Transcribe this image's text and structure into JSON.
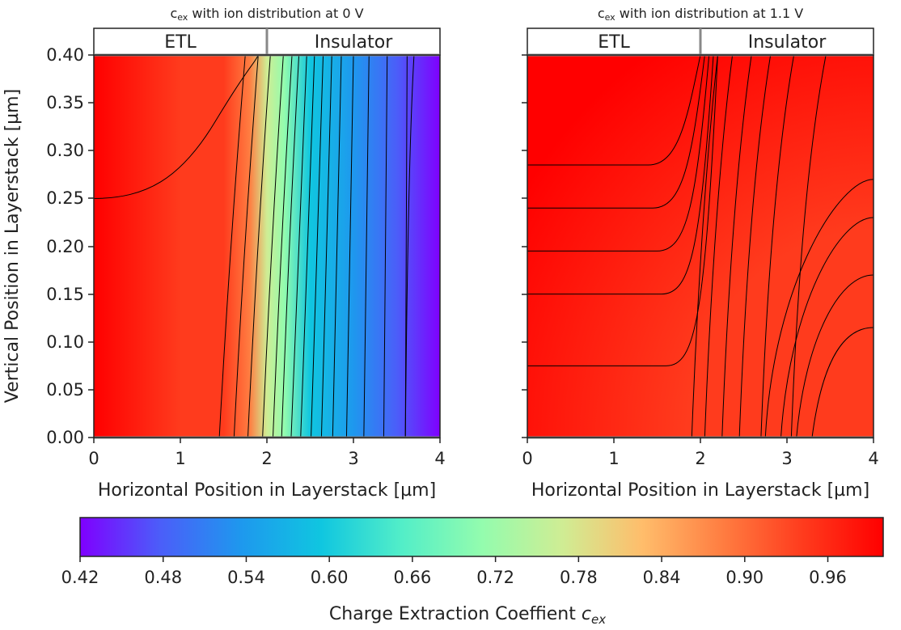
{
  "chart_data": [
    {
      "type": "heatmap",
      "title": "c_ex with ion distribution at 0 V",
      "title_parts": {
        "symbol": "c",
        "subscript": "ex",
        "rest": " with ion distribution at 0 V"
      },
      "xlabel": "Horizontal Position in Layerstack [µm]",
      "ylabel": "Vertical Position in Layerstack [µm]",
      "xlim": [
        0,
        4
      ],
      "ylim": [
        0,
        0.4
      ],
      "xticks": [
        "0",
        "1",
        "2",
        "3",
        "4"
      ],
      "yticks": [
        "0.00",
        "0.05",
        "0.10",
        "0.15",
        "0.20",
        "0.25",
        "0.30",
        "0.35",
        "0.40"
      ],
      "regions": [
        {
          "label": "ETL",
          "from": 0,
          "to": 2
        },
        {
          "label": "Insulator",
          "from": 2,
          "to": 4
        }
      ],
      "colormap": "rainbow",
      "value_range": [
        0.42,
        1.0
      ],
      "value_profile_along_x": {
        "x": [
          0,
          1.0,
          1.5,
          1.8,
          2.0,
          2.2,
          2.5,
          3.0,
          3.5,
          4.0
        ],
        "value": [
          0.98,
          0.96,
          0.94,
          0.87,
          0.79,
          0.7,
          0.62,
          0.53,
          0.47,
          0.43
        ]
      },
      "contour_count_approx": 16
    },
    {
      "type": "heatmap",
      "title": "c_ex with ion distribution at 1.1 V",
      "title_parts": {
        "symbol": "c",
        "subscript": "ex",
        "rest": " with ion distribution at 1.1 V"
      },
      "xlabel": "Horizontal Position in Layerstack [µm]",
      "ylabel": "",
      "xlim": [
        0,
        4
      ],
      "ylim": [
        0,
        0.4
      ],
      "xticks": [
        "0",
        "1",
        "2",
        "3",
        "4"
      ],
      "regions": [
        {
          "label": "ETL",
          "from": 0,
          "to": 2
        },
        {
          "label": "Insulator",
          "from": 2,
          "to": 4
        }
      ],
      "colormap": "rainbow",
      "value_range": [
        0.93,
        1.0
      ],
      "contour_count_approx": 12
    }
  ],
  "colorbar": {
    "label_text": "Charge Extraction Coeffient ",
    "label_symbol": "c",
    "label_sub": "ex",
    "ticks": [
      "0.42",
      "0.48",
      "0.54",
      "0.60",
      "0.66",
      "0.72",
      "0.78",
      "0.84",
      "0.90",
      "0.96"
    ],
    "min": 0.42,
    "max": 1.0
  },
  "colors": {
    "rainbow": [
      "#7f00ff",
      "#4b5ef9",
      "#1e98ee",
      "#10c6e0",
      "#52eec8",
      "#93fcae",
      "#cfed94",
      "#ffbd6b",
      "#ff7d41",
      "#ff3b1d",
      "#ff0000"
    ],
    "contour": "#000000",
    "frame": "#222222",
    "region_divider": "#888888"
  }
}
